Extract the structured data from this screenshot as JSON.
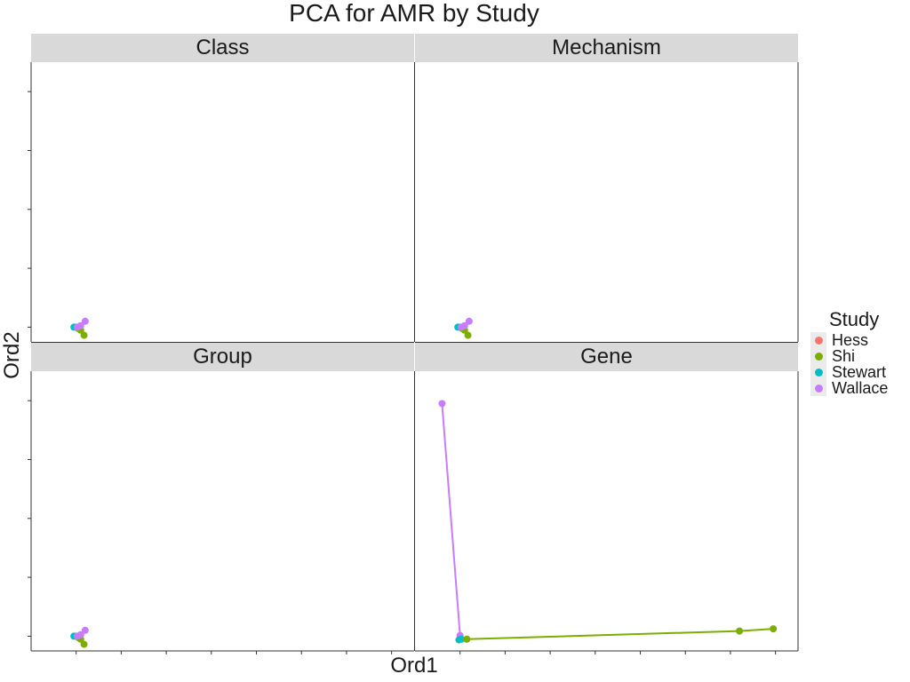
{
  "title": "PCA for AMR by Study",
  "xlabel": "Ord1",
  "ylabel": "Ord2",
  "legend": {
    "title": "Study",
    "items": [
      {
        "label": "Hess",
        "color": "#F8766D"
      },
      {
        "label": "Shi",
        "color": "#7CAE00"
      },
      {
        "label": "Stewart",
        "color": "#00BFC4"
      },
      {
        "label": "Wallace",
        "color": "#C77CFF"
      }
    ]
  },
  "chart_data": {
    "type": "scatter",
    "title": "PCA for AMR by Study",
    "xlabel": "Ord1",
    "ylabel": "Ord2",
    "facets": [
      "Class",
      "Mechanism",
      "Group",
      "Gene"
    ],
    "xlim": [
      -2,
      15
    ],
    "ylim": [
      -1,
      18
    ],
    "x_ticks": [
      0,
      2,
      4,
      6,
      8,
      10,
      12,
      14
    ],
    "y_ticks": [
      0,
      4,
      8,
      12,
      16
    ],
    "tick_labels_shown": false,
    "grid": false,
    "legend_position": "right",
    "series_colors": {
      "Hess": "#F8766D",
      "Shi": "#7CAE00",
      "Stewart": "#00BFC4",
      "Wallace": "#C77CFF"
    },
    "panels": [
      {
        "facet": "Class",
        "points": [
          {
            "study": "Stewart",
            "x": -0.1,
            "y": 0.0
          },
          {
            "study": "Stewart",
            "x": 0.0,
            "y": 0.0
          },
          {
            "study": "Shi",
            "x": 0.1,
            "y": -0.1
          },
          {
            "study": "Shi",
            "x": 0.2,
            "y": -0.2
          },
          {
            "study": "Shi",
            "x": 0.35,
            "y": -0.55
          },
          {
            "study": "Wallace",
            "x": 0.05,
            "y": 0.0
          },
          {
            "study": "Wallace",
            "x": 0.2,
            "y": 0.1
          },
          {
            "study": "Wallace",
            "x": 0.4,
            "y": 0.4
          }
        ]
      },
      {
        "facet": "Mechanism",
        "points": [
          {
            "study": "Stewart",
            "x": -0.1,
            "y": 0.0
          },
          {
            "study": "Stewart",
            "x": 0.0,
            "y": 0.0
          },
          {
            "study": "Shi",
            "x": 0.1,
            "y": -0.1
          },
          {
            "study": "Shi",
            "x": 0.2,
            "y": -0.2
          },
          {
            "study": "Shi",
            "x": 0.35,
            "y": -0.55
          },
          {
            "study": "Wallace",
            "x": 0.05,
            "y": 0.0
          },
          {
            "study": "Wallace",
            "x": 0.2,
            "y": 0.1
          },
          {
            "study": "Wallace",
            "x": 0.4,
            "y": 0.4
          }
        ]
      },
      {
        "facet": "Group",
        "points": [
          {
            "study": "Stewart",
            "x": -0.1,
            "y": 0.0
          },
          {
            "study": "Stewart",
            "x": 0.0,
            "y": 0.0
          },
          {
            "study": "Shi",
            "x": 0.1,
            "y": -0.1
          },
          {
            "study": "Shi",
            "x": 0.2,
            "y": -0.2
          },
          {
            "study": "Shi",
            "x": 0.35,
            "y": -0.55
          },
          {
            "study": "Wallace",
            "x": 0.05,
            "y": 0.0
          },
          {
            "study": "Wallace",
            "x": 0.2,
            "y": 0.1
          },
          {
            "study": "Wallace",
            "x": 0.4,
            "y": 0.4
          }
        ]
      },
      {
        "facet": "Gene",
        "lines": [
          {
            "study": "Wallace",
            "points": [
              [
                -0.8,
                15.8
              ],
              [
                0.0,
                0.05
              ]
            ]
          },
          {
            "study": "Shi",
            "points": [
              [
                0.3,
                -0.2
              ],
              [
                12.4,
                0.35
              ],
              [
                13.9,
                0.5
              ]
            ]
          }
        ],
        "points": [
          {
            "study": "Wallace",
            "x": -0.8,
            "y": 15.8
          },
          {
            "study": "Wallace",
            "x": 0.0,
            "y": 0.05
          },
          {
            "study": "Stewart",
            "x": -0.05,
            "y": -0.25
          },
          {
            "study": "Stewart",
            "x": 0.05,
            "y": -0.2
          },
          {
            "study": "Shi",
            "x": 0.3,
            "y": -0.2
          },
          {
            "study": "Shi",
            "x": 12.4,
            "y": 0.35
          },
          {
            "study": "Shi",
            "x": 13.9,
            "y": 0.5
          }
        ]
      }
    ]
  }
}
